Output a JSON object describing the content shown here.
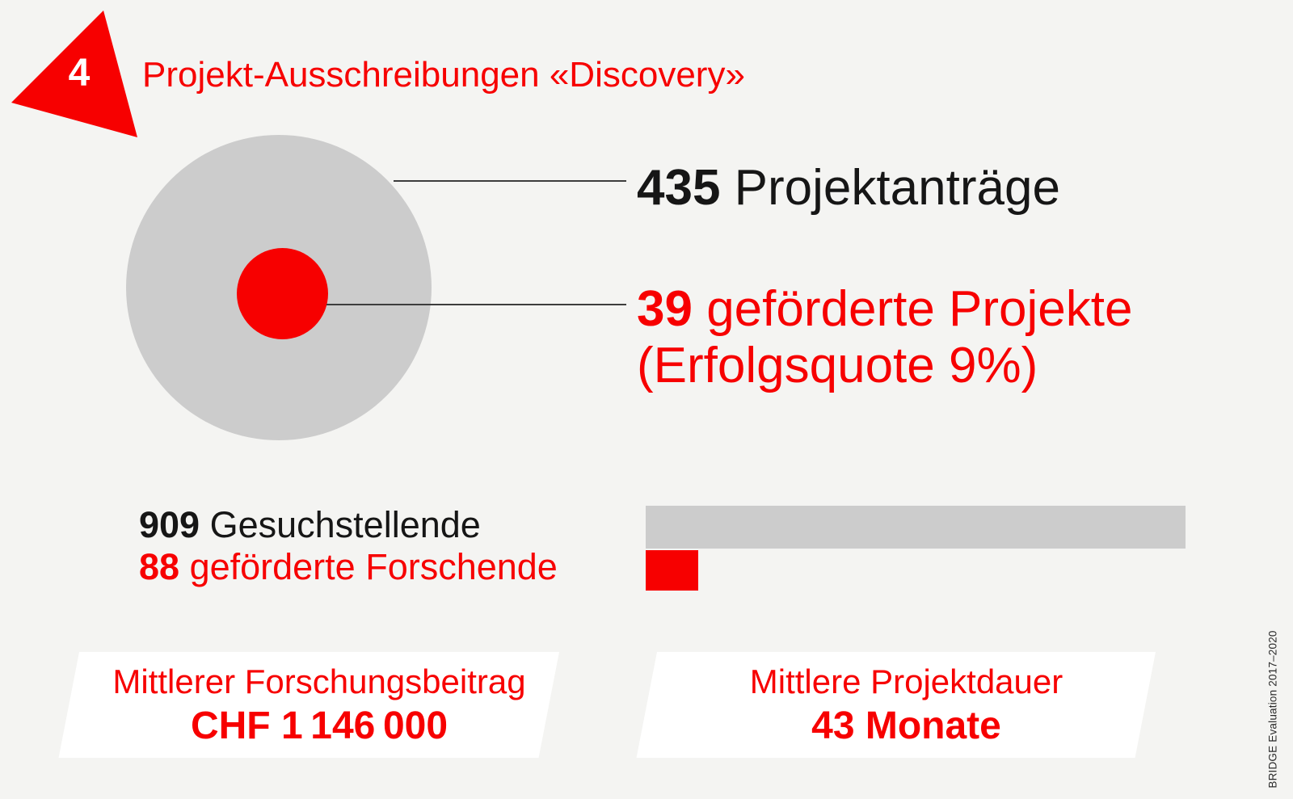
{
  "colors": {
    "background": "#f4f4f2",
    "gray": "#cccccc",
    "red": "#f70000",
    "black": "#161616",
    "line": "#3d3d3d",
    "white": "#ffffff"
  },
  "badge": {
    "number": "4"
  },
  "title": "Projekt-Ausschreibungen «Discovery»",
  "circle_chart": {
    "applications": {
      "value": "435",
      "label": " Projektanträge"
    },
    "funded": {
      "value": "39",
      "label": " geförderte Projekte",
      "sub": "(Erfolgsquote 9%)"
    }
  },
  "people": {
    "applicants": {
      "value": "909",
      "label": " Gesuchstellende"
    },
    "funded": {
      "value": "88",
      "label": " geförderte Forschende"
    }
  },
  "boxes": [
    {
      "label": "Mittlerer Forschungsbeitrag",
      "value": "CHF 1 146 000"
    },
    {
      "label": "Mittlere Projektdauer",
      "value": "43 Monate"
    }
  ],
  "side_note": "BRIDGE Evaluation 2017–2020",
  "chart_data": [
    {
      "type": "pie",
      "variant": "concentric-area-proportional-circles",
      "title": "Projekt-Ausschreibungen «Discovery»",
      "categories": [
        "Projektanträge",
        "geförderte Projekte"
      ],
      "values": [
        435,
        39
      ],
      "colors": [
        "#cccccc",
        "#f70000"
      ],
      "annotations": [
        "435 Projektanträge",
        "39 geförderte Projekte (Erfolgsquote 9%)"
      ],
      "success_rate_percent": 9,
      "legend_position": "right"
    },
    {
      "type": "bar",
      "orientation": "horizontal",
      "categories": [
        "Gesuchstellende",
        "geförderte Forschende"
      ],
      "values": [
        909,
        88
      ],
      "colors": [
        "#cccccc",
        "#f70000"
      ],
      "annotations": [
        "909 Gesuchstellende",
        "88 geförderte Forschende"
      ],
      "xlim": [
        0,
        909
      ],
      "grid": false
    }
  ]
}
